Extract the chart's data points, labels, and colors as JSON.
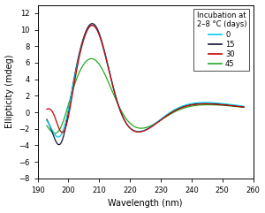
{
  "title": "",
  "xlabel": "Wavelength (nm)",
  "ylabel": "Ellipticity (mdeg)",
  "legend_title": "Incubation at\n2–8 °C (days)",
  "xlim": [
    190,
    260
  ],
  "ylim": [
    -8,
    13
  ],
  "yticks": [
    -8,
    -6,
    -4,
    -2,
    0,
    2,
    4,
    6,
    8,
    10,
    12
  ],
  "xticks": [
    190,
    200,
    210,
    220,
    230,
    240,
    250,
    260
  ],
  "colors": {
    "t0": "#00CCEE",
    "t15": "#111133",
    "t30": "#cc0000",
    "t45": "#22aa22"
  },
  "legend_labels": [
    "0",
    "15",
    "30",
    "45"
  ]
}
